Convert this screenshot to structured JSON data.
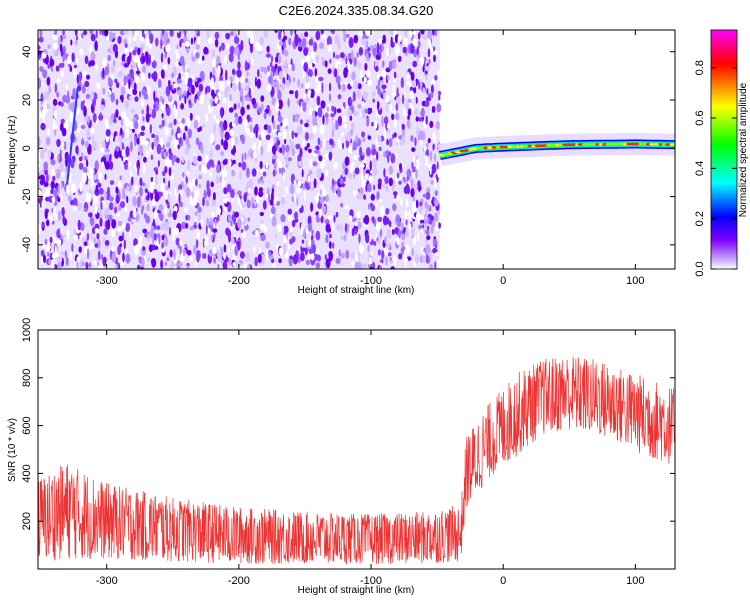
{
  "title": "C2E6.2024.335.08.34.G20",
  "chart_data": [
    {
      "type": "heatmap",
      "title": "C2E6.2024.335.08.34.G20",
      "xlabel": "Height of straight line (km)",
      "ylabel": "Frequency (Hz)",
      "xlim": [
        -352,
        130
      ],
      "ylim": [
        -50,
        49
      ],
      "xticks": [
        -300,
        -200,
        -100,
        0,
        100
      ],
      "yticks": [
        -40,
        -20,
        0,
        20,
        40
      ],
      "colorbar": {
        "label": "Normalized spectral amplitude",
        "range": [
          0,
          0.95
        ],
        "ticks": [
          0.0,
          0.2,
          0.4,
          0.6,
          0.8
        ],
        "colormap": [
          "#ffffff",
          "#c8a8ff",
          "#8000ff",
          "#0000ff",
          "#00ffff",
          "#00ff00",
          "#ffff00",
          "#ff0000",
          "#ff00ff"
        ]
      },
      "noise_region": {
        "x_start": -352,
        "x_end": -48
      },
      "tone_track": [
        {
          "x": -48,
          "y": -3
        },
        {
          "x": -20,
          "y": 0
        },
        {
          "x": 0,
          "y": 0.5
        },
        {
          "x": 50,
          "y": 1.5
        },
        {
          "x": 100,
          "y": 1.8
        },
        {
          "x": 130,
          "y": 1.5
        }
      ],
      "grid": false
    },
    {
      "type": "line",
      "xlabel": "Height of straight line (km)",
      "ylabel": "SNR (10 * v/v)",
      "xlim": [
        -352,
        130
      ],
      "ylim": [
        0,
        1000
      ],
      "xticks": [
        -300,
        -200,
        -100,
        0,
        100
      ],
      "yticks": [
        200,
        400,
        600,
        800,
        1000
      ],
      "series": [
        {
          "color": "#ee3333",
          "envelope": [
            {
              "x": -352,
              "low": 30,
              "high": 380
            },
            {
              "x": -330,
              "low": 40,
              "high": 450
            },
            {
              "x": -300,
              "low": 40,
              "high": 360
            },
            {
              "x": -250,
              "low": 30,
              "high": 300
            },
            {
              "x": -200,
              "low": 20,
              "high": 260
            },
            {
              "x": -150,
              "low": 20,
              "high": 240
            },
            {
              "x": -100,
              "low": 20,
              "high": 230
            },
            {
              "x": -60,
              "low": 20,
              "high": 240
            },
            {
              "x": -32,
              "low": 30,
              "high": 270
            },
            {
              "x": -28,
              "low": 250,
              "high": 560
            },
            {
              "x": -10,
              "low": 380,
              "high": 700
            },
            {
              "x": 10,
              "low": 470,
              "high": 820
            },
            {
              "x": 30,
              "low": 560,
              "high": 880
            },
            {
              "x": 50,
              "low": 580,
              "high": 900
            },
            {
              "x": 70,
              "low": 560,
              "high": 880
            },
            {
              "x": 90,
              "low": 520,
              "high": 840
            },
            {
              "x": 110,
              "low": 460,
              "high": 800
            },
            {
              "x": 130,
              "low": 430,
              "high": 760
            }
          ]
        }
      ],
      "grid": false
    }
  ]
}
